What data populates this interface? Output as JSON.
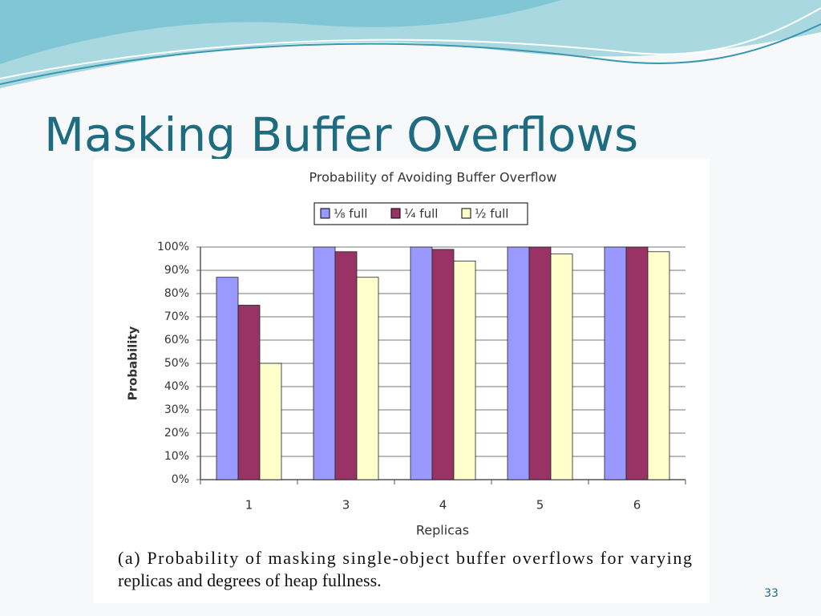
{
  "slide_title": "Masking Buffer Overflows",
  "slide_number": "33",
  "caption": [
    "(a) Probability of masking single-object buffer overflows for varying",
    "replicas and degrees of heap fullness."
  ],
  "chart_data": {
    "type": "bar",
    "title": "Probability of Avoiding Buffer Overflow",
    "x_label": "Replicas",
    "y_label": "Probability",
    "categories": [
      "1",
      "3",
      "4",
      "5",
      "6"
    ],
    "series": [
      {
        "name": "⅛ full",
        "color": "#9999ff",
        "values": [
          87,
          100,
          100,
          100,
          100
        ]
      },
      {
        "name": "¼ full",
        "color": "#993366",
        "values": [
          75,
          98,
          99,
          100,
          100
        ]
      },
      {
        "name": "½ full",
        "color": "#ffffcc",
        "values": [
          50,
          87,
          94,
          97,
          98
        ]
      }
    ],
    "ylim": [
      0,
      100
    ],
    "yticks": [
      {
        "value": 0,
        "label": "0%"
      },
      {
        "value": 10,
        "label": "10%"
      },
      {
        "value": 20,
        "label": "20%"
      },
      {
        "value": 30,
        "label": "30%"
      },
      {
        "value": 40,
        "label": "40%"
      },
      {
        "value": 50,
        "label": "50%"
      },
      {
        "value": 60,
        "label": "60%"
      },
      {
        "value": 70,
        "label": "70%"
      },
      {
        "value": 80,
        "label": "80%"
      },
      {
        "value": 90,
        "label": "90%"
      },
      {
        "value": 100,
        "label": "100%"
      }
    ],
    "grid": true,
    "legend": "top"
  }
}
